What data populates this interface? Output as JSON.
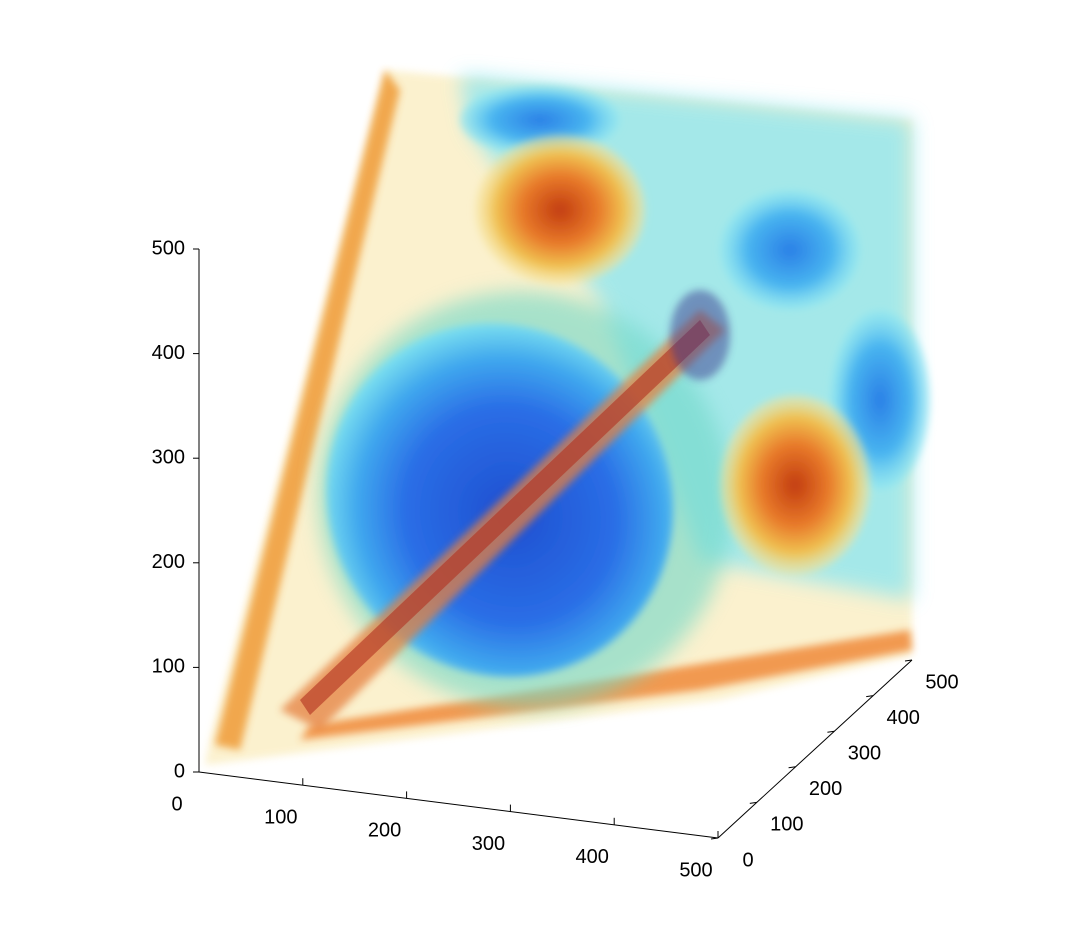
{
  "chart_data": {
    "type": "isosurface",
    "xlim": [
      0,
      500
    ],
    "ylim": [
      0,
      500
    ],
    "zlim": [
      0,
      500
    ],
    "xticks": [
      0,
      100,
      200,
      300,
      400,
      500
    ],
    "yticks": [
      0,
      100,
      200,
      300,
      400,
      500
    ],
    "zticks": [
      0,
      100,
      200,
      300,
      400,
      500
    ]
  }
}
